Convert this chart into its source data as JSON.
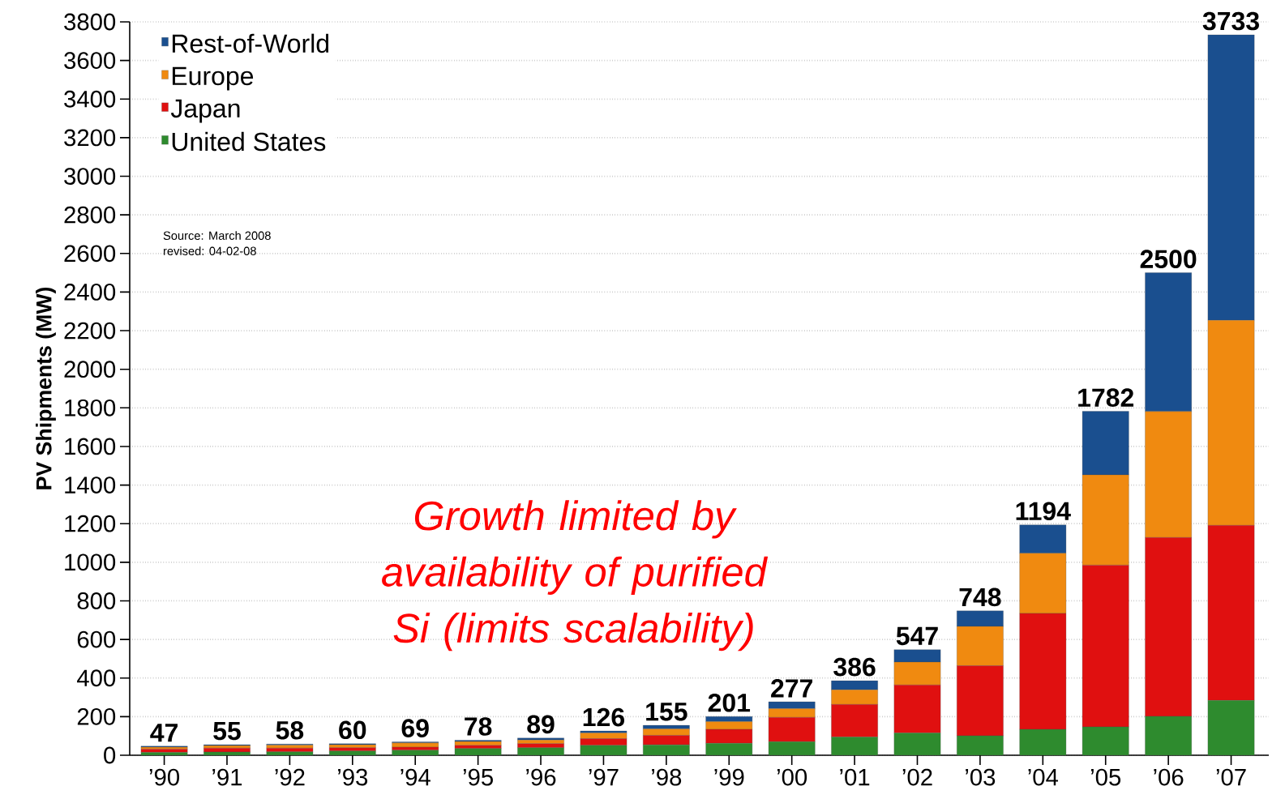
{
  "chart_data": {
    "type": "bar",
    "stacked": true,
    "ylabel": "PV Shipments (MW)",
    "categories": [
      "’90",
      "’91",
      "’92",
      "’93",
      "’94",
      "’95",
      "’96",
      "’97",
      "’98",
      "’99",
      "’00",
      "’01",
      "’02",
      "’03",
      "’04",
      "’05",
      "’06",
      "’07"
    ],
    "series": [
      {
        "name": "United States",
        "color": "#2e8b2e",
        "values": [
          15,
          17,
          18,
          22,
          26,
          35,
          39,
          51,
          54,
          62,
          70,
          94,
          115,
          101,
          134,
          147,
          202,
          284
        ]
      },
      {
        "name": "Japan",
        "color": "#e01010",
        "values": [
          17,
          20,
          19,
          17,
          16,
          16,
          21,
          35,
          49,
          72,
          126,
          169,
          249,
          363,
          601,
          838,
          926,
          907
        ]
      },
      {
        "name": "Europe",
        "color": "#f08a10",
        "values": [
          10,
          13,
          16,
          16,
          22,
          20,
          19,
          30,
          33,
          40,
          45,
          76,
          119,
          204,
          312,
          468,
          653,
          1063
        ]
      },
      {
        "name": "Rest-of-World",
        "color": "#1a4f8f",
        "values": [
          5,
          5,
          5,
          5,
          5,
          7,
          10,
          10,
          19,
          27,
          36,
          47,
          64,
          80,
          147,
          329,
          719,
          1479
        ]
      }
    ],
    "totals": [
      "47",
      "55",
      "58",
      "60",
      "69",
      "78",
      "89",
      "126",
      "155",
      "201",
      "277",
      "386",
      "547",
      "748",
      "1194",
      "1782",
      "2500",
      "3733"
    ],
    "ylim": [
      0,
      3800
    ],
    "yticks": [
      0,
      200,
      400,
      600,
      800,
      1000,
      1200,
      1400,
      1600,
      1800,
      2000,
      2200,
      2400,
      2600,
      2800,
      3000,
      3200,
      3400,
      3600,
      3800
    ],
    "grid": "y",
    "legend": "top left",
    "annotations": [
      "Growth limited by availability of purified Si (limits scalability)",
      "Source: March 2008",
      "revised: 04-02-08"
    ]
  }
}
